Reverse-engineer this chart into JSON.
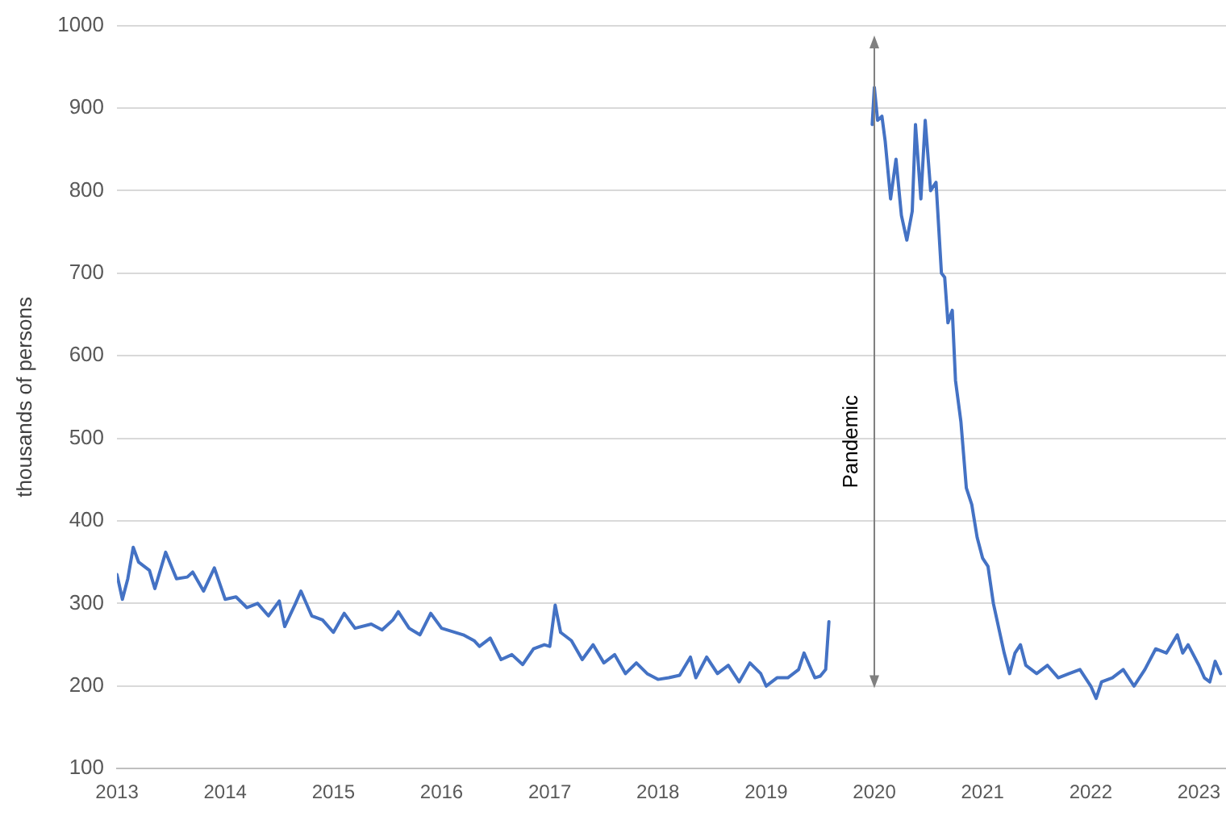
{
  "chart_data": {
    "type": "line",
    "ylabel": "thousands of persons",
    "x": [
      2013.0,
      2013.05,
      2013.1,
      2013.15,
      2013.2,
      2013.3,
      2013.35,
      2013.45,
      2013.55,
      2013.65,
      2013.7,
      2013.8,
      2013.9,
      2014.0,
      2014.1,
      2014.2,
      2014.3,
      2014.4,
      2014.5,
      2014.55,
      2014.65,
      2014.7,
      2014.8,
      2014.9,
      2015.0,
      2015.1,
      2015.2,
      2015.35,
      2015.45,
      2015.55,
      2015.6,
      2015.7,
      2015.8,
      2015.9,
      2016.0,
      2016.2,
      2016.3,
      2016.35,
      2016.45,
      2016.55,
      2016.65,
      2016.75,
      2016.85,
      2016.95,
      2017.0,
      2017.05,
      2017.1,
      2017.2,
      2017.3,
      2017.4,
      2017.5,
      2017.6,
      2017.7,
      2017.8,
      2017.9,
      2018.0,
      2018.1,
      2018.2,
      2018.3,
      2018.35,
      2018.45,
      2018.55,
      2018.65,
      2018.75,
      2018.85,
      2018.95,
      2019.0,
      2019.1,
      2019.2,
      2019.3,
      2019.35,
      2019.4,
      2019.45,
      2019.5,
      2019.55,
      2019.58,
      2019.8,
      2019.98,
      2020.0,
      2020.03,
      2020.07,
      2020.1,
      2020.15,
      2020.2,
      2020.25,
      2020.3,
      2020.35,
      2020.38,
      2020.43,
      2020.47,
      2020.52,
      2020.57,
      2020.62,
      2020.65,
      2020.68,
      2020.72,
      2020.75,
      2020.8,
      2020.85,
      2020.9,
      2020.95,
      2021.0,
      2021.05,
      2021.1,
      2021.15,
      2021.2,
      2021.25,
      2021.3,
      2021.35,
      2021.4,
      2021.5,
      2021.6,
      2021.7,
      2021.8,
      2021.9,
      2022.0,
      2022.05,
      2022.1,
      2022.2,
      2022.3,
      2022.4,
      2022.5,
      2022.6,
      2022.7,
      2022.8,
      2022.85,
      2022.9,
      2023.0,
      2023.05,
      2023.1,
      2023.15,
      2023.2
    ],
    "series": [
      {
        "color": "#4472c4",
        "values": [
          335,
          305,
          330,
          368,
          350,
          340,
          318,
          362,
          330,
          332,
          338,
          315,
          343,
          305,
          308,
          295,
          300,
          285,
          303,
          272,
          300,
          315,
          285,
          280,
          265,
          288,
          270,
          275,
          268,
          280,
          290,
          270,
          262,
          288,
          270,
          262,
          255,
          248,
          258,
          232,
          238,
          226,
          245,
          250,
          248,
          298,
          265,
          255,
          232,
          250,
          228,
          238,
          215,
          228,
          215,
          208,
          210,
          213,
          235,
          210,
          235,
          215,
          225,
          205,
          228,
          215,
          200,
          210,
          210,
          220,
          240,
          225,
          210,
          212,
          220,
          278,
          null,
          880,
          925,
          885,
          890,
          860,
          790,
          838,
          770,
          740,
          775,
          880,
          790,
          885,
          800,
          810,
          700,
          695,
          640,
          655,
          570,
          520,
          440,
          420,
          380,
          355,
          345,
          300,
          270,
          240,
          215,
          240,
          250,
          225,
          215,
          225,
          210,
          215,
          220,
          200,
          185,
          205,
          210,
          220,
          200,
          220,
          245,
          240,
          262,
          240,
          250,
          225,
          210,
          205,
          230,
          215
        ]
      }
    ],
    "xlim": [
      2013,
      2023.25
    ],
    "xticks": [
      2013,
      2014,
      2015,
      2016,
      2017,
      2018,
      2019,
      2020,
      2021,
      2022,
      2023
    ],
    "ylim": [
      100,
      1000
    ],
    "yticks": [
      100,
      200,
      300,
      400,
      500,
      600,
      700,
      800,
      900,
      1000
    ],
    "grid": "y",
    "legend": false,
    "marker": "none",
    "line_style": "solid",
    "ref_lines": [
      {
        "axis": "x",
        "value": 2020,
        "label": "Pandemic",
        "color": "#808080"
      }
    ]
  }
}
